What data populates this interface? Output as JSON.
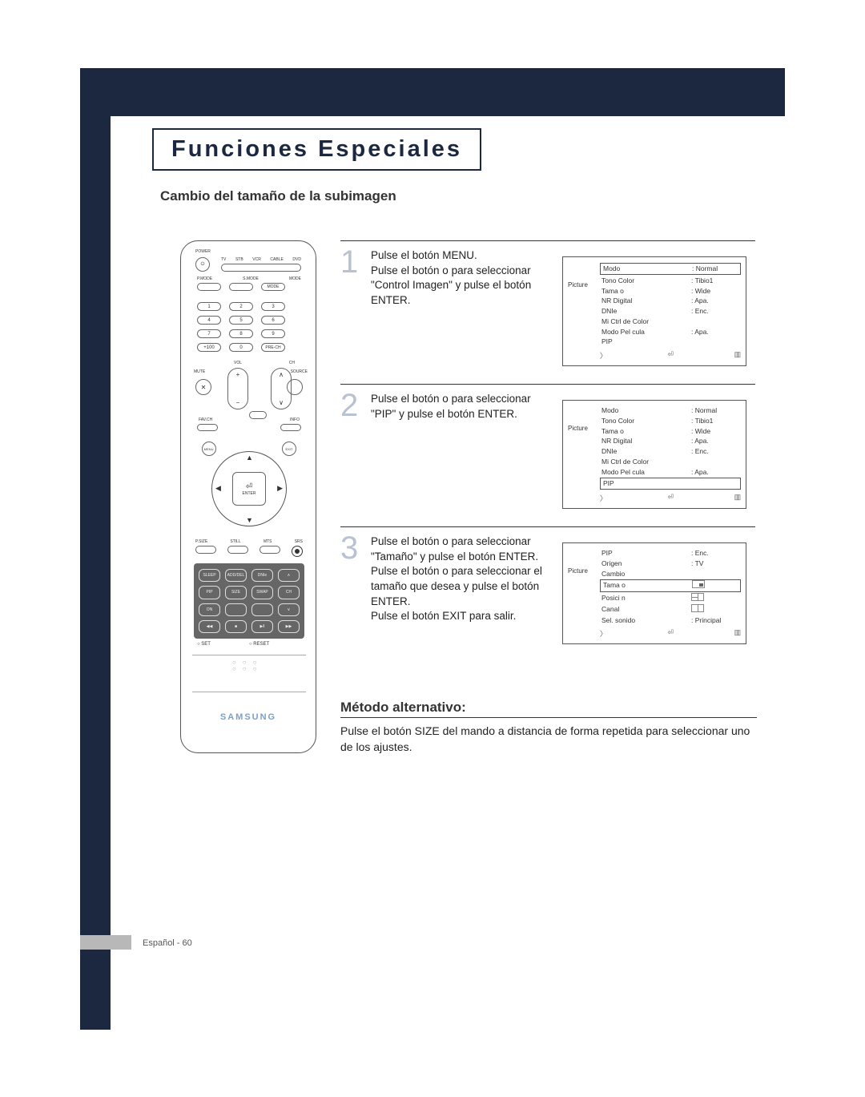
{
  "page": {
    "header_title": "Funciones Especiales",
    "section_title": "Cambio del tamaño de la subimagen",
    "alt_title": "Método alternativo:",
    "alt_text": "Pulse el botón SIZE del mando a distancia de forma repetida para seleccionar uno de los ajustes.",
    "footer": "Español - 60"
  },
  "steps": [
    {
      "num": "1",
      "text": "Pulse el botón MENU.\nPulse el botón      o      para seleccionar \"Control Imagen\" y pulse el botón ENTER.",
      "menu": {
        "side": "Picture",
        "rows": [
          {
            "k": "Modo",
            "v": ": Normal",
            "boxed": true
          },
          {
            "k": "Tono Color",
            "v": ": Tibio1"
          },
          {
            "k": "Tama o",
            "v": ": Wide"
          },
          {
            "k": "NR Digital",
            "v": ": Apa."
          },
          {
            "k": "DNIe",
            "v": ": Enc."
          },
          {
            "k": "Mi Ctrl de Color",
            "v": ""
          },
          {
            "k": "Modo Pel cula",
            "v": ": Apa."
          },
          {
            "k": "PIP",
            "v": ""
          }
        ]
      }
    },
    {
      "num": "2",
      "text": "Pulse el botón      o      para seleccionar \"PIP\" y pulse el botón ENTER.",
      "menu": {
        "side": "Picture",
        "rows": [
          {
            "k": "Modo",
            "v": ": Normal"
          },
          {
            "k": "Tono Color",
            "v": ": Tibio1"
          },
          {
            "k": "Tama o",
            "v": ": Wide"
          },
          {
            "k": "NR Digital",
            "v": ": Apa."
          },
          {
            "k": "DNIe",
            "v": ": Enc."
          },
          {
            "k": "Mi Ctrl de Color",
            "v": ""
          },
          {
            "k": "Modo Pel cula",
            "v": ": Apa."
          },
          {
            "k": "PIP",
            "v": "",
            "boxed": true
          }
        ]
      }
    },
    {
      "num": "3",
      "text": "Pulse el botón      o      para seleccionar \"Tamaño\" y pulse el botón ENTER.\nPulse el botón      o      para seleccionar el tamaño que desea y pulse el botón ENTER.\nPulse el botón EXIT para salir.",
      "menu": {
        "side": "Picture",
        "rows": [
          {
            "k": "PIP",
            "v": ": Enc."
          },
          {
            "k": "Origen",
            "v": ": TV"
          },
          {
            "k": "Cambio",
            "v": ""
          },
          {
            "k": "Tama o",
            "v": "",
            "icon": "sm",
            "boxed": true
          },
          {
            "k": "Posici n",
            "v": "",
            "icon": "q"
          },
          {
            "k": "Canal",
            "v": "",
            "icon": "qv"
          },
          {
            "k": "Sel. sonido",
            "v": ": Principal"
          }
        ]
      }
    }
  ],
  "remote": {
    "power_label": "POWER",
    "source_labels": [
      "TV",
      "STB",
      "VCR",
      "CABLE",
      "DVD"
    ],
    "mode_row": [
      "P.MODE",
      "S.MODE",
      "MODE"
    ],
    "numA": [
      "1",
      "2",
      "3"
    ],
    "numB": [
      "4",
      "5",
      "6"
    ],
    "numC": [
      "7",
      "8",
      "9"
    ],
    "numD": [
      "+100",
      "0",
      "PRE-CH"
    ],
    "vol_label": "VOL",
    "ch_label": "CH",
    "mute_label": "MUTE",
    "source_label": "SOURCE",
    "fav_label": "FAV.CH",
    "info_label": "INFO",
    "menu_label": "MENU",
    "exit_label": "EXIT",
    "enter_label": "ENTER",
    "midrow_labels": [
      "P.SIZE",
      "STILL",
      "MTS",
      "SRS"
    ],
    "grid_labels": [
      "SLEEP",
      "ADD/DEL",
      "DNIe",
      "∧",
      "PIP",
      "SIZE",
      "SWAP",
      "CH",
      "ON",
      "",
      "",
      "∨",
      "REW",
      "STOP",
      "PLAY/PAUSE",
      "FF"
    ],
    "grid_symbols": [
      "◀◀",
      "■",
      "▶‖",
      "▶▶"
    ],
    "set_label": "SET",
    "reset_label": "RESET",
    "brand": "SAMSUNG"
  },
  "colors": {
    "frame": "#1c2740",
    "title": "#1c2740",
    "stepnum": "#b9c2d2",
    "brand": "#7aa0cc"
  }
}
